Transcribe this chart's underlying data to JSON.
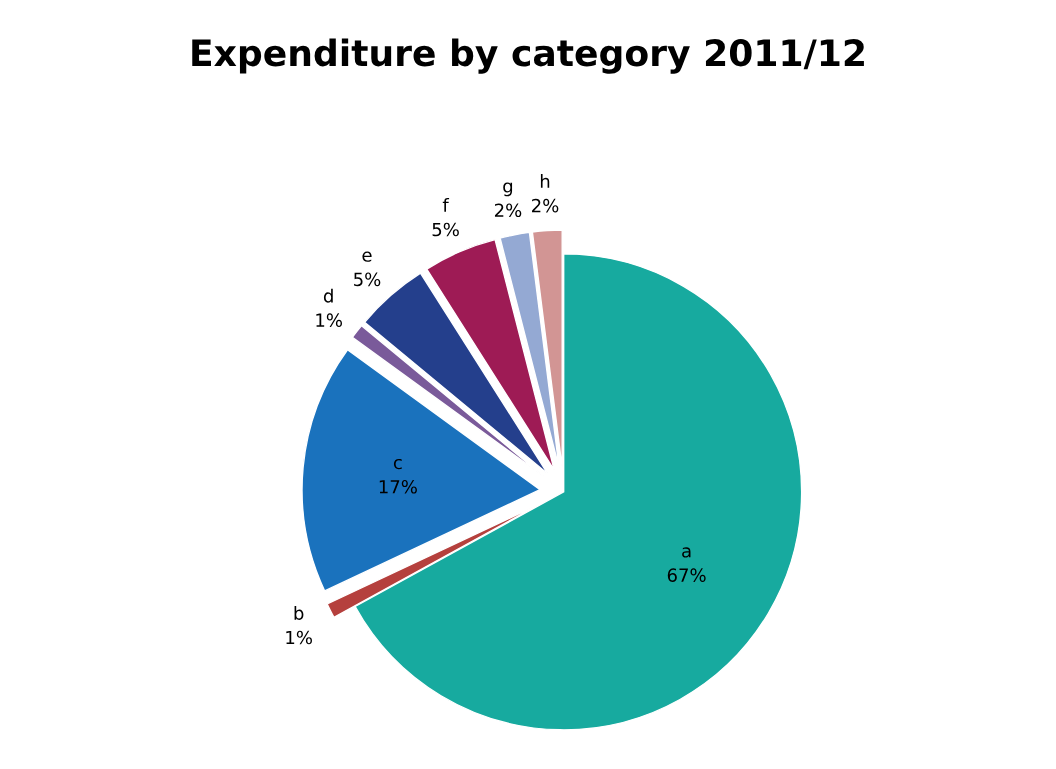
{
  "chart_data": {
    "type": "pie",
    "title": "Expenditure by category 2011/12",
    "categories": [
      "a",
      "b",
      "c",
      "d",
      "e",
      "f",
      "g",
      "h"
    ],
    "values": [
      67,
      1,
      17,
      1,
      5,
      5,
      2,
      2
    ],
    "colors": [
      "#17aa9f",
      "#b5403d",
      "#1a72bd",
      "#7a5a9a",
      "#243f8c",
      "#9e1b55",
      "#94a9d3",
      "#d29594"
    ],
    "value_labels": [
      "67%",
      "1%",
      "17%",
      "1%",
      "5%",
      "5%",
      "2%",
      "2%"
    ],
    "legend": false
  }
}
